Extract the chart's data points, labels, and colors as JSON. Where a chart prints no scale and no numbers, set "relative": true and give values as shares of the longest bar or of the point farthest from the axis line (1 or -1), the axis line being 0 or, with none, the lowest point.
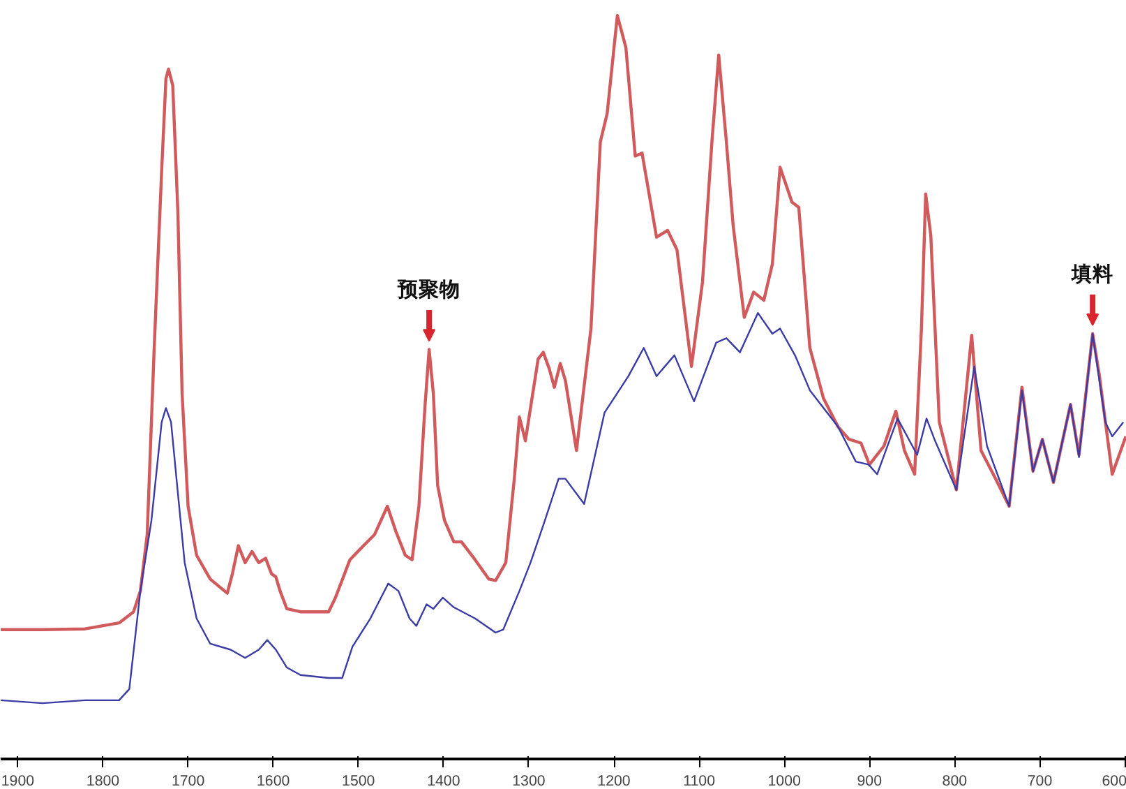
{
  "chart_data": {
    "type": "line",
    "relative": true,
    "xlim": [
      1920,
      598
    ],
    "xticks": [
      1900,
      1800,
      1700,
      1600,
      1500,
      1400,
      1300,
      1200,
      1100,
      1000,
      900,
      800,
      700,
      600
    ],
    "grid": false,
    "tick_labels": "x",
    "line_style": "solid",
    "series": [
      {
        "color": "#d05a5c",
        "x": [
          1920,
          1871,
          1821,
          1781,
          1764,
          1756,
          1748,
          1740,
          1731,
          1726,
          1723,
          1718,
          1712,
          1707,
          1700,
          1690,
          1674,
          1654,
          1648,
          1641,
          1633,
          1625,
          1617,
          1609,
          1602,
          1597,
          1592,
          1584,
          1568,
          1535,
          1527,
          1510,
          1494,
          1481,
          1466,
          1456,
          1445,
          1437,
          1429,
          1422,
          1417,
          1412,
          1407,
          1399,
          1388,
          1379,
          1363,
          1347,
          1339,
          1327,
          1317,
          1311,
          1304,
          1298,
          1289,
          1283,
          1276,
          1270,
          1263,
          1257,
          1244,
          1227,
          1216,
          1208,
          1196,
          1186,
          1175,
          1167,
          1150,
          1137,
          1126,
          1109,
          1096,
          1085,
          1077,
          1068,
          1060,
          1047,
          1036,
          1024,
          1014,
          1005,
          991,
          983,
          970,
          954,
          937,
          924,
          910,
          900,
          883,
          869,
          859,
          847,
          839,
          834,
          828,
          818,
          798,
          780,
          769,
          752,
          736,
          721,
          708,
          697,
          684,
          664,
          654,
          638,
          630,
          615,
          599
        ],
        "values": [
          0.174,
          0.174,
          0.175,
          0.183,
          0.198,
          0.226,
          0.302,
          0.547,
          0.792,
          0.915,
          0.928,
          0.906,
          0.736,
          0.491,
          0.34,
          0.274,
          0.242,
          0.223,
          0.249,
          0.287,
          0.264,
          0.279,
          0.264,
          0.27,
          0.249,
          0.245,
          0.226,
          0.202,
          0.198,
          0.198,
          0.217,
          0.268,
          0.287,
          0.302,
          0.34,
          0.306,
          0.274,
          0.268,
          0.34,
          0.472,
          0.551,
          0.491,
          0.368,
          0.321,
          0.292,
          0.292,
          0.268,
          0.242,
          0.24,
          0.264,
          0.377,
          0.46,
          0.428,
          0.472,
          0.538,
          0.547,
          0.525,
          0.5,
          0.532,
          0.509,
          0.415,
          0.579,
          0.83,
          0.868,
          1.0,
          0.957,
          0.811,
          0.815,
          0.702,
          0.711,
          0.685,
          0.528,
          0.642,
          0.83,
          0.947,
          0.83,
          0.717,
          0.594,
          0.628,
          0.617,
          0.666,
          0.796,
          0.749,
          0.742,
          0.553,
          0.485,
          0.447,
          0.43,
          0.425,
          0.396,
          0.421,
          0.468,
          0.415,
          0.383,
          0.579,
          0.76,
          0.704,
          0.453,
          0.362,
          0.57,
          0.415,
          0.377,
          0.34,
          0.5,
          0.387,
          0.43,
          0.372,
          0.477,
          0.409,
          0.572,
          0.515,
          0.383,
          0.434
        ]
      },
      {
        "color": "#3b3ba6",
        "x": [
          1920,
          1871,
          1821,
          1781,
          1769,
          1756,
          1743,
          1731,
          1726,
          1720,
          1712,
          1704,
          1690,
          1674,
          1650,
          1633,
          1617,
          1607,
          1597,
          1584,
          1568,
          1535,
          1519,
          1507,
          1486,
          1465,
          1453,
          1440,
          1432,
          1420,
          1412,
          1401,
          1388,
          1363,
          1339,
          1330,
          1311,
          1298,
          1281,
          1265,
          1257,
          1235,
          1211,
          1183,
          1165,
          1150,
          1129,
          1106,
          1080,
          1068,
          1052,
          1031,
          1014,
          1005,
          987,
          970,
          937,
          916,
          901,
          891,
          867,
          844,
          833,
          823,
          798,
          777,
          762,
          736,
          721,
          708,
          697,
          684,
          664,
          654,
          638,
          623,
          615,
          602
        ],
        "values": [
          0.079,
          0.075,
          0.079,
          0.079,
          0.094,
          0.226,
          0.321,
          0.453,
          0.472,
          0.453,
          0.358,
          0.264,
          0.189,
          0.155,
          0.147,
          0.136,
          0.147,
          0.16,
          0.147,
          0.123,
          0.113,
          0.109,
          0.109,
          0.151,
          0.189,
          0.236,
          0.226,
          0.189,
          0.179,
          0.208,
          0.202,
          0.217,
          0.204,
          0.189,
          0.17,
          0.174,
          0.226,
          0.264,
          0.321,
          0.377,
          0.377,
          0.343,
          0.466,
          0.515,
          0.553,
          0.515,
          0.543,
          0.481,
          0.56,
          0.566,
          0.547,
          0.6,
          0.572,
          0.579,
          0.542,
          0.496,
          0.447,
          0.4,
          0.396,
          0.383,
          0.458,
          0.409,
          0.458,
          0.428,
          0.362,
          0.528,
          0.421,
          0.34,
          0.496,
          0.387,
          0.43,
          0.372,
          0.477,
          0.406,
          0.572,
          0.453,
          0.434,
          0.453
        ]
      }
    ],
    "annotations": [
      {
        "text": "预聚物",
        "x": 1417,
        "y": 0.551
      },
      {
        "text": "填料",
        "x": 638,
        "y": 0.572
      }
    ]
  }
}
